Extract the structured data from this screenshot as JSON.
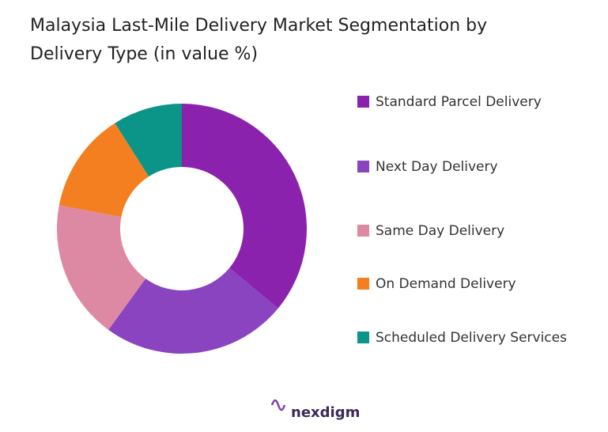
{
  "chart_data": {
    "type": "donut",
    "title": "Malaysia Last-Mile Delivery Market Segmentation by Delivery Type (in value %)",
    "title_lines": [
      "Malaysia Last-Mile Delivery Market Segmentation by",
      "Delivery Type (in value %)"
    ],
    "categories": [
      "Standard Parcel Delivery",
      "Next Day Delivery",
      "Same Day Delivery",
      "On Demand Delivery",
      "Scheduled Delivery Services"
    ],
    "values": [
      36,
      24,
      18,
      13,
      9
    ],
    "colors": [
      "#8b22ad",
      "#8a44c0",
      "#de89a3",
      "#f47f20",
      "#0b9488"
    ],
    "legend": "right",
    "watermark": "nexdigm"
  }
}
